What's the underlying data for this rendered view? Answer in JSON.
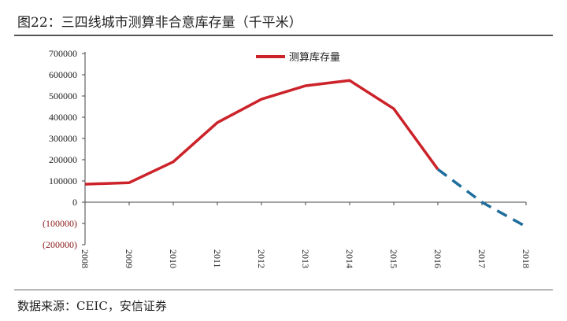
{
  "title": "图22：三四线城市测算非合意库存量（千平米）",
  "source": "数据来源：CEIC，安信证券",
  "colors": {
    "actual": "#cc2229",
    "forecast": "#1f6e9c",
    "axis": "#444444",
    "negative_tick": "#8b1a1a"
  },
  "chart_data": {
    "type": "line",
    "title": "",
    "xlabel": "",
    "ylabel": "",
    "x": [
      "2008",
      "2009",
      "2010",
      "2011",
      "2012",
      "2013",
      "2014",
      "2015",
      "2016",
      "2017",
      "2018"
    ],
    "ylim": [
      -200000,
      700000
    ],
    "yticks": [
      700000,
      600000,
      500000,
      400000,
      300000,
      200000,
      100000,
      0,
      -100000,
      -200000
    ],
    "ytick_labels": [
      "700000",
      "600000",
      "500000",
      "400000",
      "300000",
      "200000",
      "100000",
      "0",
      "(100000)",
      "(200000)"
    ],
    "grid": false,
    "legend_position": "top-center",
    "series": [
      {
        "name": "测算库存量",
        "style": "solid",
        "values": [
          85000,
          92000,
          190000,
          375000,
          485000,
          548000,
          573000,
          440000,
          155000,
          null,
          null
        ]
      },
      {
        "name": "",
        "style": "dashed",
        "values": [
          null,
          null,
          null,
          null,
          null,
          null,
          null,
          null,
          155000,
          0,
          -115000
        ]
      }
    ]
  }
}
